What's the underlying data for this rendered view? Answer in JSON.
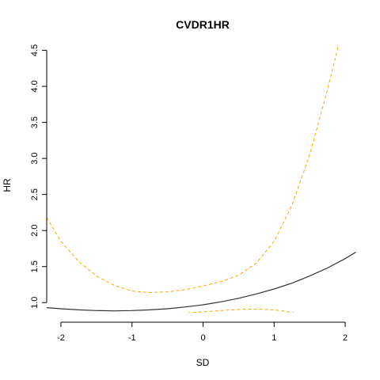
{
  "chart_data": {
    "type": "line",
    "title": "CVDR1HR",
    "xlabel": "SD",
    "ylabel": "HR",
    "xlim": [
      -2.2,
      2.2
    ],
    "ylim": [
      0.86,
      4.55
    ],
    "x_ticks": [
      "-2",
      "-1",
      "0",
      "1",
      "2"
    ],
    "y_ticks": [
      "1.0",
      "1.5",
      "2.0",
      "2.5",
      "3.0",
      "3.5",
      "4.0",
      "4.5"
    ],
    "grid": false,
    "series": [
      {
        "style": "solid",
        "color": "#333333",
        "x": [
          -2.2,
          -2.0,
          -1.75,
          -1.5,
          -1.25,
          -1.0,
          -0.75,
          -0.5,
          -0.25,
          0.0,
          0.25,
          0.5,
          0.75,
          1.0,
          1.25,
          1.5,
          1.75,
          2.0,
          2.15
        ],
        "y": [
          0.93,
          0.915,
          0.9,
          0.89,
          0.885,
          0.89,
          0.9,
          0.915,
          0.94,
          0.97,
          1.01,
          1.06,
          1.12,
          1.19,
          1.27,
          1.37,
          1.48,
          1.61,
          1.7
        ]
      },
      {
        "style": "dashed",
        "color": "#ffa500",
        "x": [
          -2.2,
          -2.0,
          -1.75,
          -1.5,
          -1.25,
          -1.0,
          -0.75,
          -0.5,
          -0.25,
          0.0,
          0.25,
          0.5,
          0.75,
          1.0,
          1.25,
          1.5,
          1.75,
          1.9
        ],
        "y": [
          2.18,
          1.85,
          1.57,
          1.37,
          1.24,
          1.16,
          1.14,
          1.15,
          1.18,
          1.23,
          1.29,
          1.38,
          1.55,
          1.85,
          2.35,
          3.05,
          3.95,
          4.55
        ]
      },
      {
        "style": "dashed",
        "color": "#ffa500",
        "x": [
          -0.3,
          -0.25,
          0.0,
          0.25,
          0.5,
          0.75,
          1.0,
          1.15,
          1.3
        ],
        "y": [
          0.855,
          0.857,
          0.872,
          0.89,
          0.905,
          0.91,
          0.9,
          0.88,
          0.855
        ]
      }
    ]
  }
}
